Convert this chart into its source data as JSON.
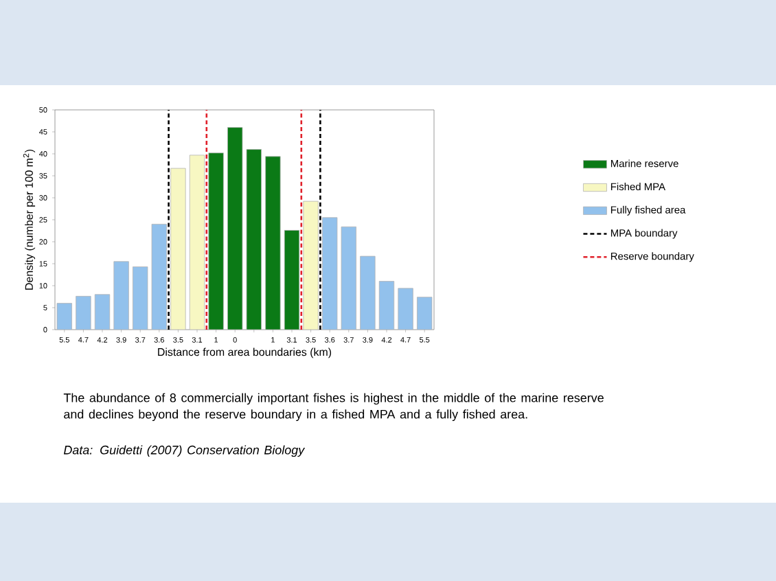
{
  "chart_data": {
    "type": "bar",
    "xlabel": "Distance from area boundaries (km)",
    "ylabel": "Density (number per 100 m$^{2}$)",
    "categories": [
      "5.5",
      "4.7",
      "4.2",
      "3.9",
      "3.7",
      "3.6",
      "3.5",
      "3.1",
      "1",
      "0",
      null,
      "1",
      "3.1",
      "3.5",
      "3.6",
      "3.7",
      "3.9",
      "4.2",
      "4.7",
      "5.5"
    ],
    "series": [
      {
        "name": "Marine reserve",
        "color": "#0b7a16",
        "values": [
          null,
          null,
          null,
          null,
          null,
          null,
          null,
          null,
          40.2,
          46,
          41,
          39.4,
          22.6,
          null,
          null,
          null,
          null,
          null,
          null,
          null
        ]
      },
      {
        "name": "Fished MPA",
        "color": "#f7f7c2",
        "values": [
          null,
          null,
          null,
          null,
          null,
          null,
          36.7,
          39.7,
          null,
          null,
          null,
          null,
          null,
          29.2,
          null,
          null,
          null,
          null,
          null,
          null
        ]
      },
      {
        "name": "Fully fished area",
        "color": "#92c1ec",
        "values": [
          6,
          7.6,
          8,
          15.5,
          14.3,
          24,
          null,
          null,
          null,
          null,
          null,
          null,
          null,
          null,
          25.5,
          23.4,
          16.7,
          11,
          9.4,
          7.4
        ]
      }
    ],
    "ylim": [
      0,
      50
    ],
    "yticks": [
      0,
      5,
      10,
      15,
      20,
      25,
      30,
      35,
      40,
      45,
      50
    ],
    "legend": "right",
    "ref_lines": [
      {
        "axis": "x",
        "label": "MPA boundary",
        "color": "#000000",
        "line_style": "dashed"
      },
      {
        "axis": "x",
        "label": "Reserve boundary",
        "color": "#e0202a",
        "line_style": "dashed"
      }
    ],
    "annotations": [
      "The abundance of 8 commercially important fishes is highest in the middle of the marine reserve and declines beyond the reserve boundary in a fished MPA and a fully fished area.",
      "Data: Guidetti (2007) Conservation Biology"
    ]
  }
}
